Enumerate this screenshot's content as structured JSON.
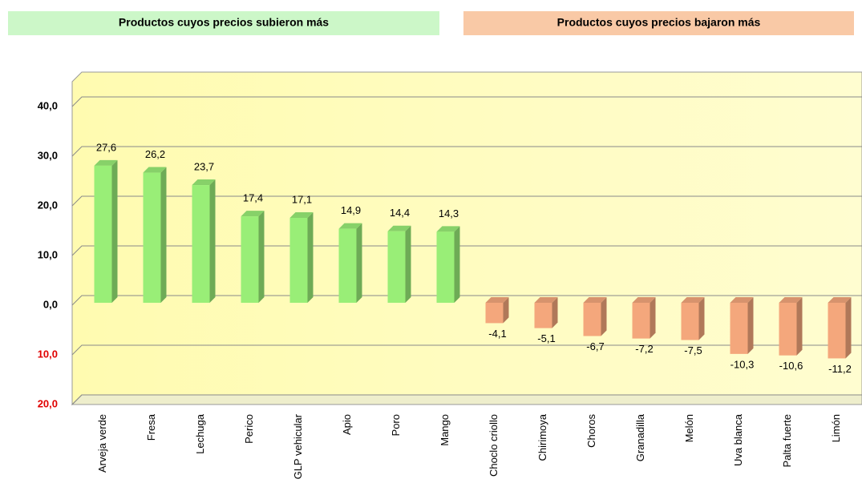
{
  "chart_data": {
    "type": "bar3d",
    "headers": [
      {
        "text": "Productos cuyos precios subieron más",
        "color": "#ccf7c8"
      },
      {
        "text": "Productos cuyos precios bajaron más",
        "color": "#f9c9a6"
      }
    ],
    "categories": [
      "Arveja verde",
      "Fresa",
      "Lechuga",
      "Perico",
      "GLP vehicular",
      "Apio",
      "Poro",
      "Mango",
      "Choclo criollo",
      "Chirimoya",
      "Choros",
      "Granadilla",
      "Melón",
      "Uva blanca",
      "Palta fuerte",
      "Limón"
    ],
    "values": [
      27.6,
      26.2,
      23.7,
      17.4,
      17.1,
      14.9,
      14.4,
      14.3,
      -4.1,
      -5.1,
      -6.7,
      -7.2,
      -7.5,
      -10.3,
      -10.6,
      -11.2
    ],
    "value_labels": [
      "27,6",
      "26,2",
      "23,7",
      "17,4",
      "17,1",
      "14,9",
      "14,4",
      "14,3",
      "-4,1",
      "-5,1",
      "-6,7",
      "-7,2",
      "-7,5",
      "-10,3",
      "-10,6",
      "-11,2"
    ],
    "color_positive": "#99ee77",
    "color_negative": "#f4a77c",
    "negative_tick_color": "#e00000",
    "ylim": [
      -20,
      45
    ],
    "yticks": [
      {
        "value": -20,
        "label": "20,0"
      },
      {
        "value": -10,
        "label": "10,0"
      },
      {
        "value": 0,
        "label": "0,0"
      },
      {
        "value": 10,
        "label": "10,0"
      },
      {
        "value": 20,
        "label": "20,0"
      },
      {
        "value": 30,
        "label": "30,0"
      },
      {
        "value": 40,
        "label": "40,0"
      }
    ],
    "grid": true
  }
}
